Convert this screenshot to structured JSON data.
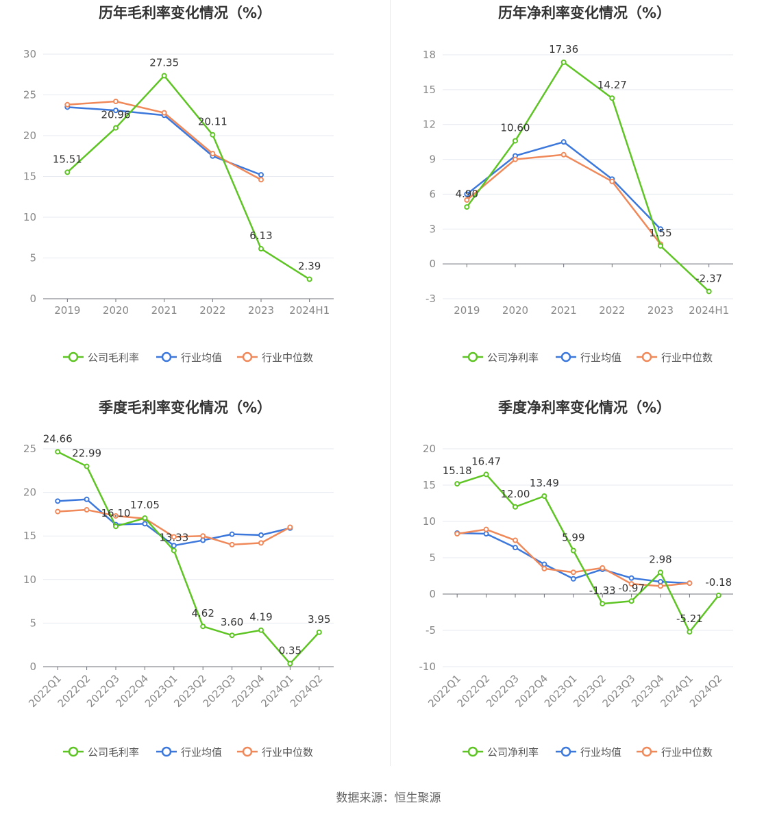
{
  "colors": {
    "company": "#5ec424",
    "avg": "#3c78dc",
    "median": "#f0895a"
  },
  "source": "数据来源：恒生聚源",
  "chart_data": [
    {
      "type": "line",
      "title": "历年毛利率变化情况（%）",
      "categories": [
        "2019",
        "2020",
        "2021",
        "2022",
        "2023",
        "2024H1"
      ],
      "ylim": [
        0,
        30
      ],
      "yticks": [
        0,
        5,
        10,
        15,
        20,
        25,
        30
      ],
      "rotate_x": false,
      "series": [
        {
          "name": "公司毛利率",
          "key": "company",
          "labels": true,
          "values": [
            15.51,
            20.96,
            27.35,
            20.11,
            6.13,
            2.39
          ]
        },
        {
          "name": "行业均值",
          "key": "avg",
          "labels": false,
          "values": [
            23.5,
            23.1,
            22.5,
            17.5,
            15.2,
            null
          ]
        },
        {
          "name": "行业中位数",
          "key": "median",
          "labels": false,
          "values": [
            23.8,
            24.2,
            22.8,
            17.8,
            14.6,
            null
          ]
        }
      ]
    },
    {
      "type": "line",
      "title": "历年净利率变化情况（%）",
      "categories": [
        "2019",
        "2020",
        "2021",
        "2022",
        "2023",
        "2024H1"
      ],
      "ylim": [
        -3,
        18
      ],
      "yticks": [
        -3,
        0,
        3,
        6,
        9,
        12,
        15,
        18
      ],
      "rotate_x": false,
      "series": [
        {
          "name": "公司净利率",
          "key": "company",
          "labels": true,
          "values": [
            4.9,
            10.6,
            17.36,
            14.27,
            1.55,
            -2.37
          ]
        },
        {
          "name": "行业均值",
          "key": "avg",
          "labels": false,
          "values": [
            6.0,
            9.3,
            10.5,
            7.3,
            3.0,
            null
          ]
        },
        {
          "name": "行业中位数",
          "key": "median",
          "labels": false,
          "values": [
            5.5,
            9.0,
            9.4,
            7.1,
            1.7,
            null
          ]
        }
      ]
    },
    {
      "type": "line",
      "title": "季度毛利率变化情况（%）",
      "categories": [
        "2022Q1",
        "2022Q2",
        "2022Q3",
        "2022Q4",
        "2023Q1",
        "2023Q2",
        "2023Q3",
        "2023Q4",
        "2024Q1",
        "2024Q2"
      ],
      "ylim": [
        0,
        25
      ],
      "yticks": [
        0,
        5,
        10,
        15,
        20,
        25
      ],
      "rotate_x": true,
      "series": [
        {
          "name": "公司毛利率",
          "key": "company",
          "labels": true,
          "values": [
            24.66,
            22.99,
            16.1,
            17.05,
            13.33,
            4.62,
            3.6,
            4.19,
            0.35,
            3.95
          ]
        },
        {
          "name": "行业均值",
          "key": "avg",
          "labels": false,
          "values": [
            19.0,
            19.2,
            16.3,
            16.4,
            13.9,
            14.5,
            15.2,
            15.1,
            15.9,
            null
          ]
        },
        {
          "name": "行业中位数",
          "key": "median",
          "labels": false,
          "values": [
            17.8,
            18.0,
            17.3,
            17.0,
            14.9,
            15.0,
            14.0,
            14.2,
            16.0,
            null
          ]
        }
      ]
    },
    {
      "type": "line",
      "title": "季度净利率变化情况（%）",
      "categories": [
        "2022Q1",
        "2022Q2",
        "2022Q3",
        "2022Q4",
        "2023Q1",
        "2023Q2",
        "2023Q3",
        "2023Q4",
        "2024Q1",
        "2024Q2"
      ],
      "ylim": [
        -10,
        20
      ],
      "yticks": [
        -10,
        -5,
        0,
        5,
        10,
        15,
        20
      ],
      "rotate_x": true,
      "series": [
        {
          "name": "公司净利率",
          "key": "company",
          "labels": true,
          "values": [
            15.18,
            16.47,
            12.0,
            13.49,
            5.99,
            -1.33,
            -0.97,
            2.98,
            -5.21,
            -0.18
          ]
        },
        {
          "name": "行业均值",
          "key": "avg",
          "labels": false,
          "values": [
            8.4,
            8.3,
            6.4,
            4.1,
            2.1,
            3.4,
            2.2,
            1.7,
            1.5,
            null
          ]
        },
        {
          "name": "行业中位数",
          "key": "median",
          "labels": false,
          "values": [
            8.3,
            8.9,
            7.4,
            3.5,
            3.0,
            3.6,
            1.4,
            1.1,
            1.5,
            null
          ]
        }
      ]
    }
  ]
}
